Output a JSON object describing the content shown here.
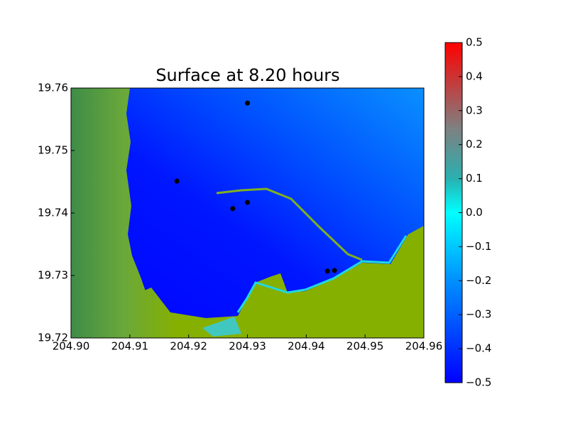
{
  "chart_data": {
    "type": "scatter",
    "title": "Surface at 8.20 hours",
    "x": [
      204.93,
      204.918,
      204.9275,
      204.93,
      204.9436,
      204.9448
    ],
    "values": [
      19.7576,
      19.7451,
      19.7407,
      19.7417,
      19.7307,
      19.7308
    ],
    "color": "#000000",
    "xlim": [
      204.9,
      204.96
    ],
    "ylim": [
      19.72,
      19.76
    ],
    "xticks": [
      {
        "value": 204.9,
        "label": "204.90"
      },
      204.91,
      204.92,
      204.93,
      204.94,
      204.95,
      204.96
    ],
    "yticks": [
      19.72,
      19.73,
      19.74,
      19.75,
      19.76
    ],
    "colorbar": {
      "lim": [
        -0.5,
        0.5
      ],
      "ticks": [
        {
          "value": -0.5,
          "label": "−0.5"
        },
        {
          "value": -0.4,
          "label": "−0.4"
        },
        {
          "value": -0.3,
          "label": "−0.3"
        },
        {
          "value": -0.2,
          "label": "−0.2"
        },
        {
          "value": -0.1,
          "label": "−0.1"
        },
        {
          "value": 0,
          "label": "0.0"
        },
        0.1,
        0.2,
        0.3,
        0.4,
        0.5
      ]
    }
  }
}
